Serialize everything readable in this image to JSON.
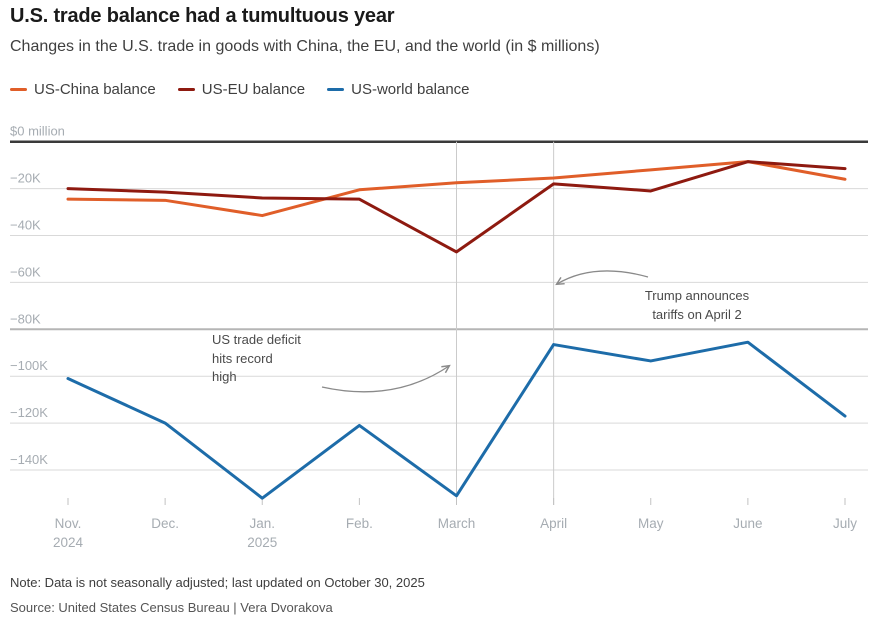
{
  "chart_data": {
    "type": "line",
    "title": "U.S. trade balance had a tumultuous year",
    "subtitle": "Changes in the U.S. trade in goods with China, the EU, and the world (in $ millions)",
    "unit": "$ millions",
    "categories": [
      "Nov. 2024",
      "Dec.",
      "Jan. 2025",
      "Feb.",
      "March",
      "April",
      "May",
      "June",
      "July"
    ],
    "x_tick_lines": [
      [
        "Nov.",
        "2024"
      ],
      [
        "Dec."
      ],
      [
        "Jan.",
        "2025"
      ],
      [
        "Feb."
      ],
      [
        "March"
      ],
      [
        "April"
      ],
      [
        "May"
      ],
      [
        "June"
      ],
      [
        "July"
      ]
    ],
    "series": [
      {
        "name": "US-China balance",
        "color": "#E05E29",
        "values": [
          -24500,
          -25000,
          -31500,
          -20500,
          -17500,
          -15500,
          -12000,
          -8500,
          -16000
        ]
      },
      {
        "name": "US-EU balance",
        "color": "#8E1A10",
        "values": [
          -20000,
          -21500,
          -24000,
          -24500,
          -47000,
          -18000,
          -21000,
          -8500,
          -11500
        ]
      },
      {
        "name": "US-world balance",
        "color": "#1D6CA9",
        "values": [
          -101000,
          -120000,
          -152000,
          -121000,
          -151000,
          -86500,
          -93500,
          -85500,
          -117000
        ]
      }
    ],
    "ylim": [
      -155000,
      0
    ],
    "grid": true,
    "legend_position": "top",
    "y_ticks": [
      {
        "value": 0,
        "label": "$0 million"
      },
      {
        "value": -20000,
        "label": "−20K"
      },
      {
        "value": -40000,
        "label": "−40K"
      },
      {
        "value": -60000,
        "label": "−60K"
      },
      {
        "value": -80000,
        "label": "−80K",
        "strong": true
      },
      {
        "value": -100000,
        "label": "−100K"
      },
      {
        "value": -120000,
        "label": "−120K"
      },
      {
        "value": -140000,
        "label": "−140K"
      }
    ],
    "reference_lines_x": [
      "March",
      "April"
    ],
    "annotations": [
      {
        "id": "record-high",
        "lines": [
          "US trade deficit",
          "hits record",
          "high"
        ],
        "points_to": "March"
      },
      {
        "id": "tariffs",
        "lines": [
          "Trump announces",
          "tariffs on April 2"
        ],
        "points_to": "April"
      }
    ],
    "style": {
      "axis_text": "#A6ACB2",
      "grid": "#D9D9D9",
      "grid_strong": "#B5B5B5",
      "zero_line": "#3A3A3A",
      "ref_line": "#CBCBCB",
      "tick": "#C2C2C2",
      "arrow": "#8A8A8A"
    }
  },
  "footer": {
    "note": "Note: Data is not seasonally adjusted; last updated on October 30, 2025",
    "source": "Source: United States Census Bureau | Vera Dvorakova"
  }
}
